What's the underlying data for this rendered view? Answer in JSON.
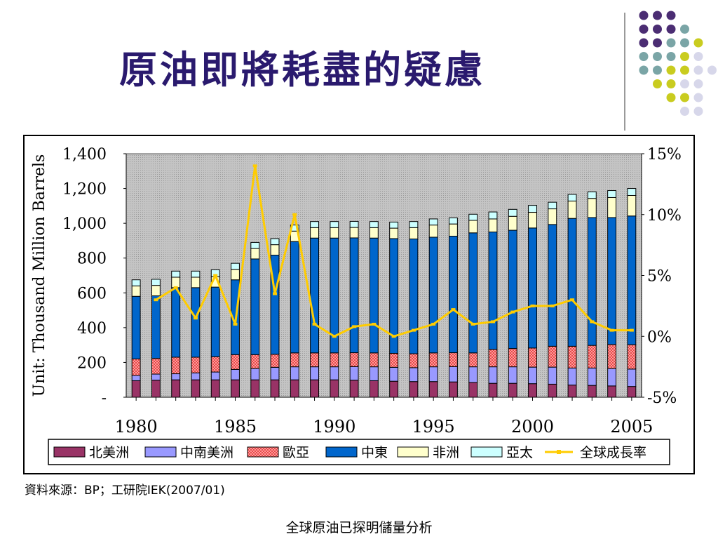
{
  "slide": {
    "title": "原油即將耗盡的疑慮",
    "source": "資料來源：BP；工研院IEK(2007/01)",
    "caption": "全球原油已探明儲量分析"
  },
  "decoration": {
    "dot_rows": [
      [
        "#4b2d73",
        "#4b2d73",
        "#4b2d73"
      ],
      [
        "#4b2d73",
        "#4b2d73",
        "#4b2d73",
        "#7aa5a6"
      ],
      [
        "#4b2d73",
        "#4b2d73",
        "#7aa5a6",
        "#7aa5a6",
        "#c9cc1f"
      ],
      [
        "#7aa5a6",
        "#7aa5a6",
        "#7aa5a6",
        "#c9cc1f",
        "#d7d7ea"
      ],
      [
        "#7aa5a6",
        "#7aa5a6",
        "#c9cc1f",
        "#c9cc1f",
        "#d7d7ea",
        "#d7d7ea"
      ],
      [
        "#c9cc1f",
        "#c9cc1f",
        "#d7d7ea",
        "#d7d7ea"
      ],
      [
        "#c9cc1f",
        "#c9cc1f",
        "#d7d7ea"
      ],
      [
        "#d7d7ea",
        "#d7d7ea"
      ]
    ]
  },
  "chart_data": {
    "type": "bar",
    "stacked": true,
    "ylabel": "Unit: Thousand Million Barrels",
    "ylim": [
      0,
      1400
    ],
    "y_ticks": [
      "-",
      "200",
      "400",
      "600",
      "800",
      "1,000",
      "1,200",
      "1,400"
    ],
    "y2lim": [
      -5,
      15
    ],
    "y2_ticks": [
      "-5%",
      "0%",
      "5%",
      "10%",
      "15%"
    ],
    "x_tick_labels": [
      "1980",
      "1985",
      "1990",
      "1995",
      "2000",
      "2005"
    ],
    "categories": [
      1980,
      1981,
      1982,
      1983,
      1984,
      1985,
      1986,
      1987,
      1988,
      1989,
      1990,
      1991,
      1992,
      1993,
      1994,
      1995,
      1996,
      1997,
      1998,
      1999,
      2000,
      2001,
      2002,
      2003,
      2004,
      2005
    ],
    "plot_background": "#bdbdbd",
    "grid": false,
    "legend_position": "bottom",
    "series": [
      {
        "name": "北美洲",
        "color": "#993366",
        "values": [
          95,
          98,
          100,
          100,
          100,
          100,
          100,
          100,
          100,
          100,
          100,
          98,
          95,
          92,
          90,
          90,
          88,
          85,
          80,
          80,
          78,
          75,
          70,
          68,
          65,
          62
        ]
      },
      {
        "name": "中南美洲",
        "color": "#9999ff",
        "values": [
          30,
          35,
          35,
          40,
          45,
          60,
          65,
          72,
          75,
          75,
          75,
          78,
          80,
          80,
          80,
          85,
          88,
          90,
          95,
          95,
          95,
          98,
          98,
          100,
          100,
          100
        ]
      },
      {
        "name": "歐亞",
        "color": "#ff8080",
        "values": [
          95,
          90,
          95,
          90,
          88,
          85,
          80,
          75,
          80,
          80,
          80,
          80,
          80,
          80,
          80,
          80,
          80,
          80,
          100,
          105,
          110,
          120,
          125,
          130,
          138,
          140
        ]
      },
      {
        "name": "中東",
        "color": "#0066cc",
        "values": [
          360,
          360,
          400,
          400,
          400,
          430,
          550,
          570,
          640,
          660,
          660,
          660,
          660,
          660,
          660,
          665,
          670,
          690,
          675,
          680,
          690,
          700,
          735,
          735,
          730,
          740
        ]
      },
      {
        "name": "非洲",
        "color": "#ffffcc",
        "values": [
          60,
          60,
          60,
          60,
          60,
          60,
          60,
          60,
          60,
          60,
          60,
          60,
          60,
          60,
          65,
          70,
          70,
          72,
          75,
          80,
          90,
          90,
          100,
          110,
          115,
          118
        ]
      },
      {
        "name": "亞太",
        "color": "#ccffff",
        "values": [
          35,
          35,
          35,
          35,
          40,
          35,
          35,
          35,
          35,
          35,
          35,
          35,
          35,
          35,
          35,
          35,
          35,
          35,
          40,
          40,
          40,
          38,
          38,
          38,
          40,
          40
        ]
      },
      {
        "name": "全球成長率",
        "color": "#ffcc00",
        "type": "line",
        "axis": "y2",
        "values": [
          null,
          3,
          4,
          1.5,
          5,
          1,
          14,
          3.5,
          10,
          1,
          0,
          0.8,
          1,
          0,
          0.5,
          1,
          2.2,
          1,
          1.2,
          2,
          2.5,
          2.5,
          3,
          1.2,
          0.5,
          0.5
        ]
      }
    ]
  }
}
